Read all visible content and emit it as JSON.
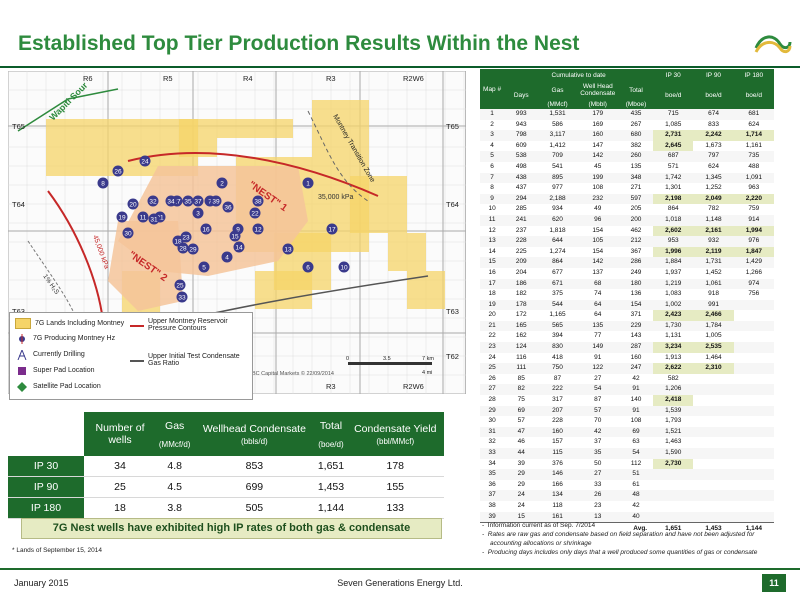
{
  "title": "Established Top Tier Production Results Within the Nest",
  "colors": {
    "accent": "#2e8b3e",
    "dark_green": "#1e6b2c",
    "yellow": "#f5d468",
    "peach": "#f5c49a",
    "highlight": "#e6ebc3"
  },
  "map": {
    "ranges": [
      "R6",
      "R5",
      "R4",
      "R3",
      "R2W6"
    ],
    "townships_left": [
      "T65",
      "T64",
      "T63"
    ],
    "townships_right": [
      "T65",
      "T64",
      "T63",
      "T62"
    ],
    "labels": {
      "wapiti": "Wapiti Sour",
      "montney_zone": "Montney Transition Zone",
      "nest1": "\"NEST\" 1",
      "nest2": "\"NEST\" 2",
      "k35000": "35,000 kPa",
      "k45000": "45,000 kPa",
      "h2s": "1% H₂S",
      "bbls": "100 Bbls/MMcf",
      "credit": "RBC Capital Markets © 22/09/2014",
      "scale_km": "7 km",
      "scale_mi": "4 mi",
      "scale_zero": "0",
      "scale_mid": "3.5"
    },
    "wells": [
      "1",
      "2",
      "3",
      "4",
      "5",
      "6",
      "7",
      "8",
      "9",
      "10",
      "11",
      "12",
      "13",
      "14",
      "15",
      "16",
      "17",
      "18",
      "19",
      "20",
      "21",
      "22",
      "23",
      "24",
      "25",
      "26",
      "27",
      "28",
      "29",
      "30",
      "31",
      "32",
      "33",
      "34",
      "35",
      "36",
      "37",
      "38",
      "39"
    ]
  },
  "legend": {
    "lands": "7G Lands Including Montney",
    "producing": "7G Producing Montney Hz",
    "drilling": "Currently Drilling",
    "super_pad": "Super Pad Location",
    "satellite": "Satellite Pad Location",
    "upper_pressure": "Upper Montney Reservoir Pressure Contours",
    "upper_cgr": "Upper Initial Test Condensate Gas Ratio"
  },
  "left_table": {
    "headers": [
      {
        "top": "Number of wells",
        "sub": ""
      },
      {
        "top": "Gas",
        "sub": "(MMcf/d)"
      },
      {
        "top": "Wellhead Condensate",
        "sub": "(bbls/d)"
      },
      {
        "top": "Total",
        "sub": "(boe/d)"
      },
      {
        "top": "Condensate Yield",
        "sub": "(bbl/MMcf)"
      }
    ],
    "rows": [
      {
        "label": "IP 30",
        "values": [
          "34",
          "4.8",
          "853",
          "1,651",
          "178"
        ]
      },
      {
        "label": "IP 90",
        "values": [
          "25",
          "4.5",
          "699",
          "1,453",
          "155"
        ]
      },
      {
        "label": "IP 180",
        "values": [
          "18",
          "3.8",
          "505",
          "1,144",
          "133"
        ]
      }
    ]
  },
  "banner": "7G Nest wells have exhibited high IP rates of both gas & condensate",
  "footnote_left": "* Lands of September 15, 2014",
  "right_table": {
    "group_cumulative": "Cumulative to date",
    "group_ip30": "IP 30",
    "group_ip90": "IP 90",
    "group_ip180": "IP 180",
    "col_map": "Map #",
    "col_days": "Days",
    "col_gas": "Gas",
    "col_cond": "Well Head Condensate",
    "col_total": "Total",
    "unit_gas": "(MMcf)",
    "unit_cond": "(Mbbl)",
    "unit_total": "(Mboe)",
    "unit_boe": "boe/d",
    "avg_label": "Avg.",
    "avg_values": [
      "1,651",
      "1,453",
      "1,144"
    ],
    "rows": [
      [
        "1",
        "993",
        "1,531",
        "179",
        "435",
        "715",
        "674",
        "681"
      ],
      [
        "2",
        "943",
        "586",
        "169",
        "267",
        "1,085",
        "833",
        "624"
      ],
      [
        "3",
        "798",
        "3,117",
        "160",
        "680",
        "2,731",
        "2,242",
        "1,714"
      ],
      [
        "4",
        "609",
        "1,412",
        "147",
        "382",
        "2,645",
        "1,673",
        "1,161"
      ],
      [
        "5",
        "538",
        "709",
        "142",
        "260",
        "687",
        "797",
        "735"
      ],
      [
        "6",
        "498",
        "541",
        "45",
        "135",
        "571",
        "624",
        "488"
      ],
      [
        "7",
        "438",
        "895",
        "199",
        "348",
        "1,742",
        "1,345",
        "1,091"
      ],
      [
        "8",
        "437",
        "977",
        "108",
        "271",
        "1,301",
        "1,252",
        "963"
      ],
      [
        "9",
        "294",
        "2,188",
        "232",
        "597",
        "2,198",
        "2,049",
        "2,220"
      ],
      [
        "10",
        "285",
        "934",
        "49",
        "205",
        "864",
        "782",
        "759"
      ],
      [
        "11",
        "241",
        "620",
        "96",
        "200",
        "1,018",
        "1,148",
        "914"
      ],
      [
        "12",
        "237",
        "1,818",
        "154",
        "462",
        "2,602",
        "2,161",
        "1,994"
      ],
      [
        "13",
        "228",
        "644",
        "105",
        "212",
        "953",
        "932",
        "976"
      ],
      [
        "14",
        "225",
        "1,274",
        "154",
        "367",
        "1,996",
        "2,119",
        "1,847"
      ],
      [
        "15",
        "209",
        "864",
        "142",
        "286",
        "1,884",
        "1,731",
        "1,429"
      ],
      [
        "16",
        "204",
        "677",
        "137",
        "249",
        "1,937",
        "1,452",
        "1,266"
      ],
      [
        "17",
        "186",
        "671",
        "68",
        "180",
        "1,219",
        "1,061",
        "974"
      ],
      [
        "18",
        "182",
        "375",
        "74",
        "136",
        "1,083",
        "918",
        "756"
      ],
      [
        "19",
        "178",
        "544",
        "64",
        "154",
        "1,002",
        "991",
        ""
      ],
      [
        "20",
        "172",
        "1,165",
        "64",
        "371",
        "2,423",
        "2,466",
        ""
      ],
      [
        "21",
        "165",
        "565",
        "135",
        "229",
        "1,730",
        "1,784",
        ""
      ],
      [
        "22",
        "162",
        "394",
        "77",
        "143",
        "1,131",
        "1,005",
        ""
      ],
      [
        "23",
        "124",
        "830",
        "149",
        "287",
        "3,234",
        "2,535",
        ""
      ],
      [
        "24",
        "116",
        "418",
        "91",
        "160",
        "1,913",
        "1,464",
        ""
      ],
      [
        "25",
        "111",
        "750",
        "122",
        "247",
        "2,622",
        "2,310",
        ""
      ],
      [
        "26",
        "85",
        "87",
        "27",
        "42",
        "582",
        "",
        ""
      ],
      [
        "27",
        "82",
        "222",
        "54",
        "91",
        "1,206",
        "",
        ""
      ],
      [
        "28",
        "75",
        "317",
        "87",
        "140",
        "2,418",
        "",
        ""
      ],
      [
        "29",
        "69",
        "207",
        "57",
        "91",
        "1,539",
        "",
        ""
      ],
      [
        "30",
        "57",
        "228",
        "70",
        "108",
        "1,793",
        "",
        ""
      ],
      [
        "31",
        "47",
        "160",
        "42",
        "69",
        "1,521",
        "",
        ""
      ],
      [
        "32",
        "46",
        "157",
        "37",
        "63",
        "1,463",
        "",
        ""
      ],
      [
        "33",
        "44",
        "115",
        "35",
        "54",
        "1,590",
        "",
        ""
      ],
      [
        "34",
        "39",
        "376",
        "50",
        "112",
        "2,730",
        "",
        ""
      ],
      [
        "35",
        "29",
        "146",
        "27",
        "51",
        "",
        "",
        ""
      ],
      [
        "36",
        "29",
        "166",
        "33",
        "61",
        "",
        "",
        ""
      ],
      [
        "37",
        "24",
        "134",
        "26",
        "48",
        "",
        "",
        ""
      ],
      [
        "38",
        "24",
        "118",
        "23",
        "42",
        "",
        "",
        ""
      ],
      [
        "39",
        "15",
        "161",
        "13",
        "40",
        "",
        "",
        ""
      ]
    ],
    "highlight_cells": [
      "2:5",
      "2:6",
      "2:7",
      "3:5",
      "8:5",
      "8:6",
      "8:7",
      "11:5",
      "11:6",
      "11:7",
      "13:5",
      "13:6",
      "13:7",
      "19:5",
      "19:6",
      "22:5",
      "22:6",
      "24:5",
      "24:6",
      "27:5",
      "33:5"
    ]
  },
  "notes": [
    "Information current as of Sep. 7/2014",
    "Rates are raw gas and condensate based on field separation and have not been adjusted for accounting allocations or shrinkage",
    "Producing days includes only days that a well produced some quantities of gas or condensate"
  ],
  "footer": {
    "date": "January 2015",
    "company": "Seven Generations Energy Ltd.",
    "page": "11"
  }
}
